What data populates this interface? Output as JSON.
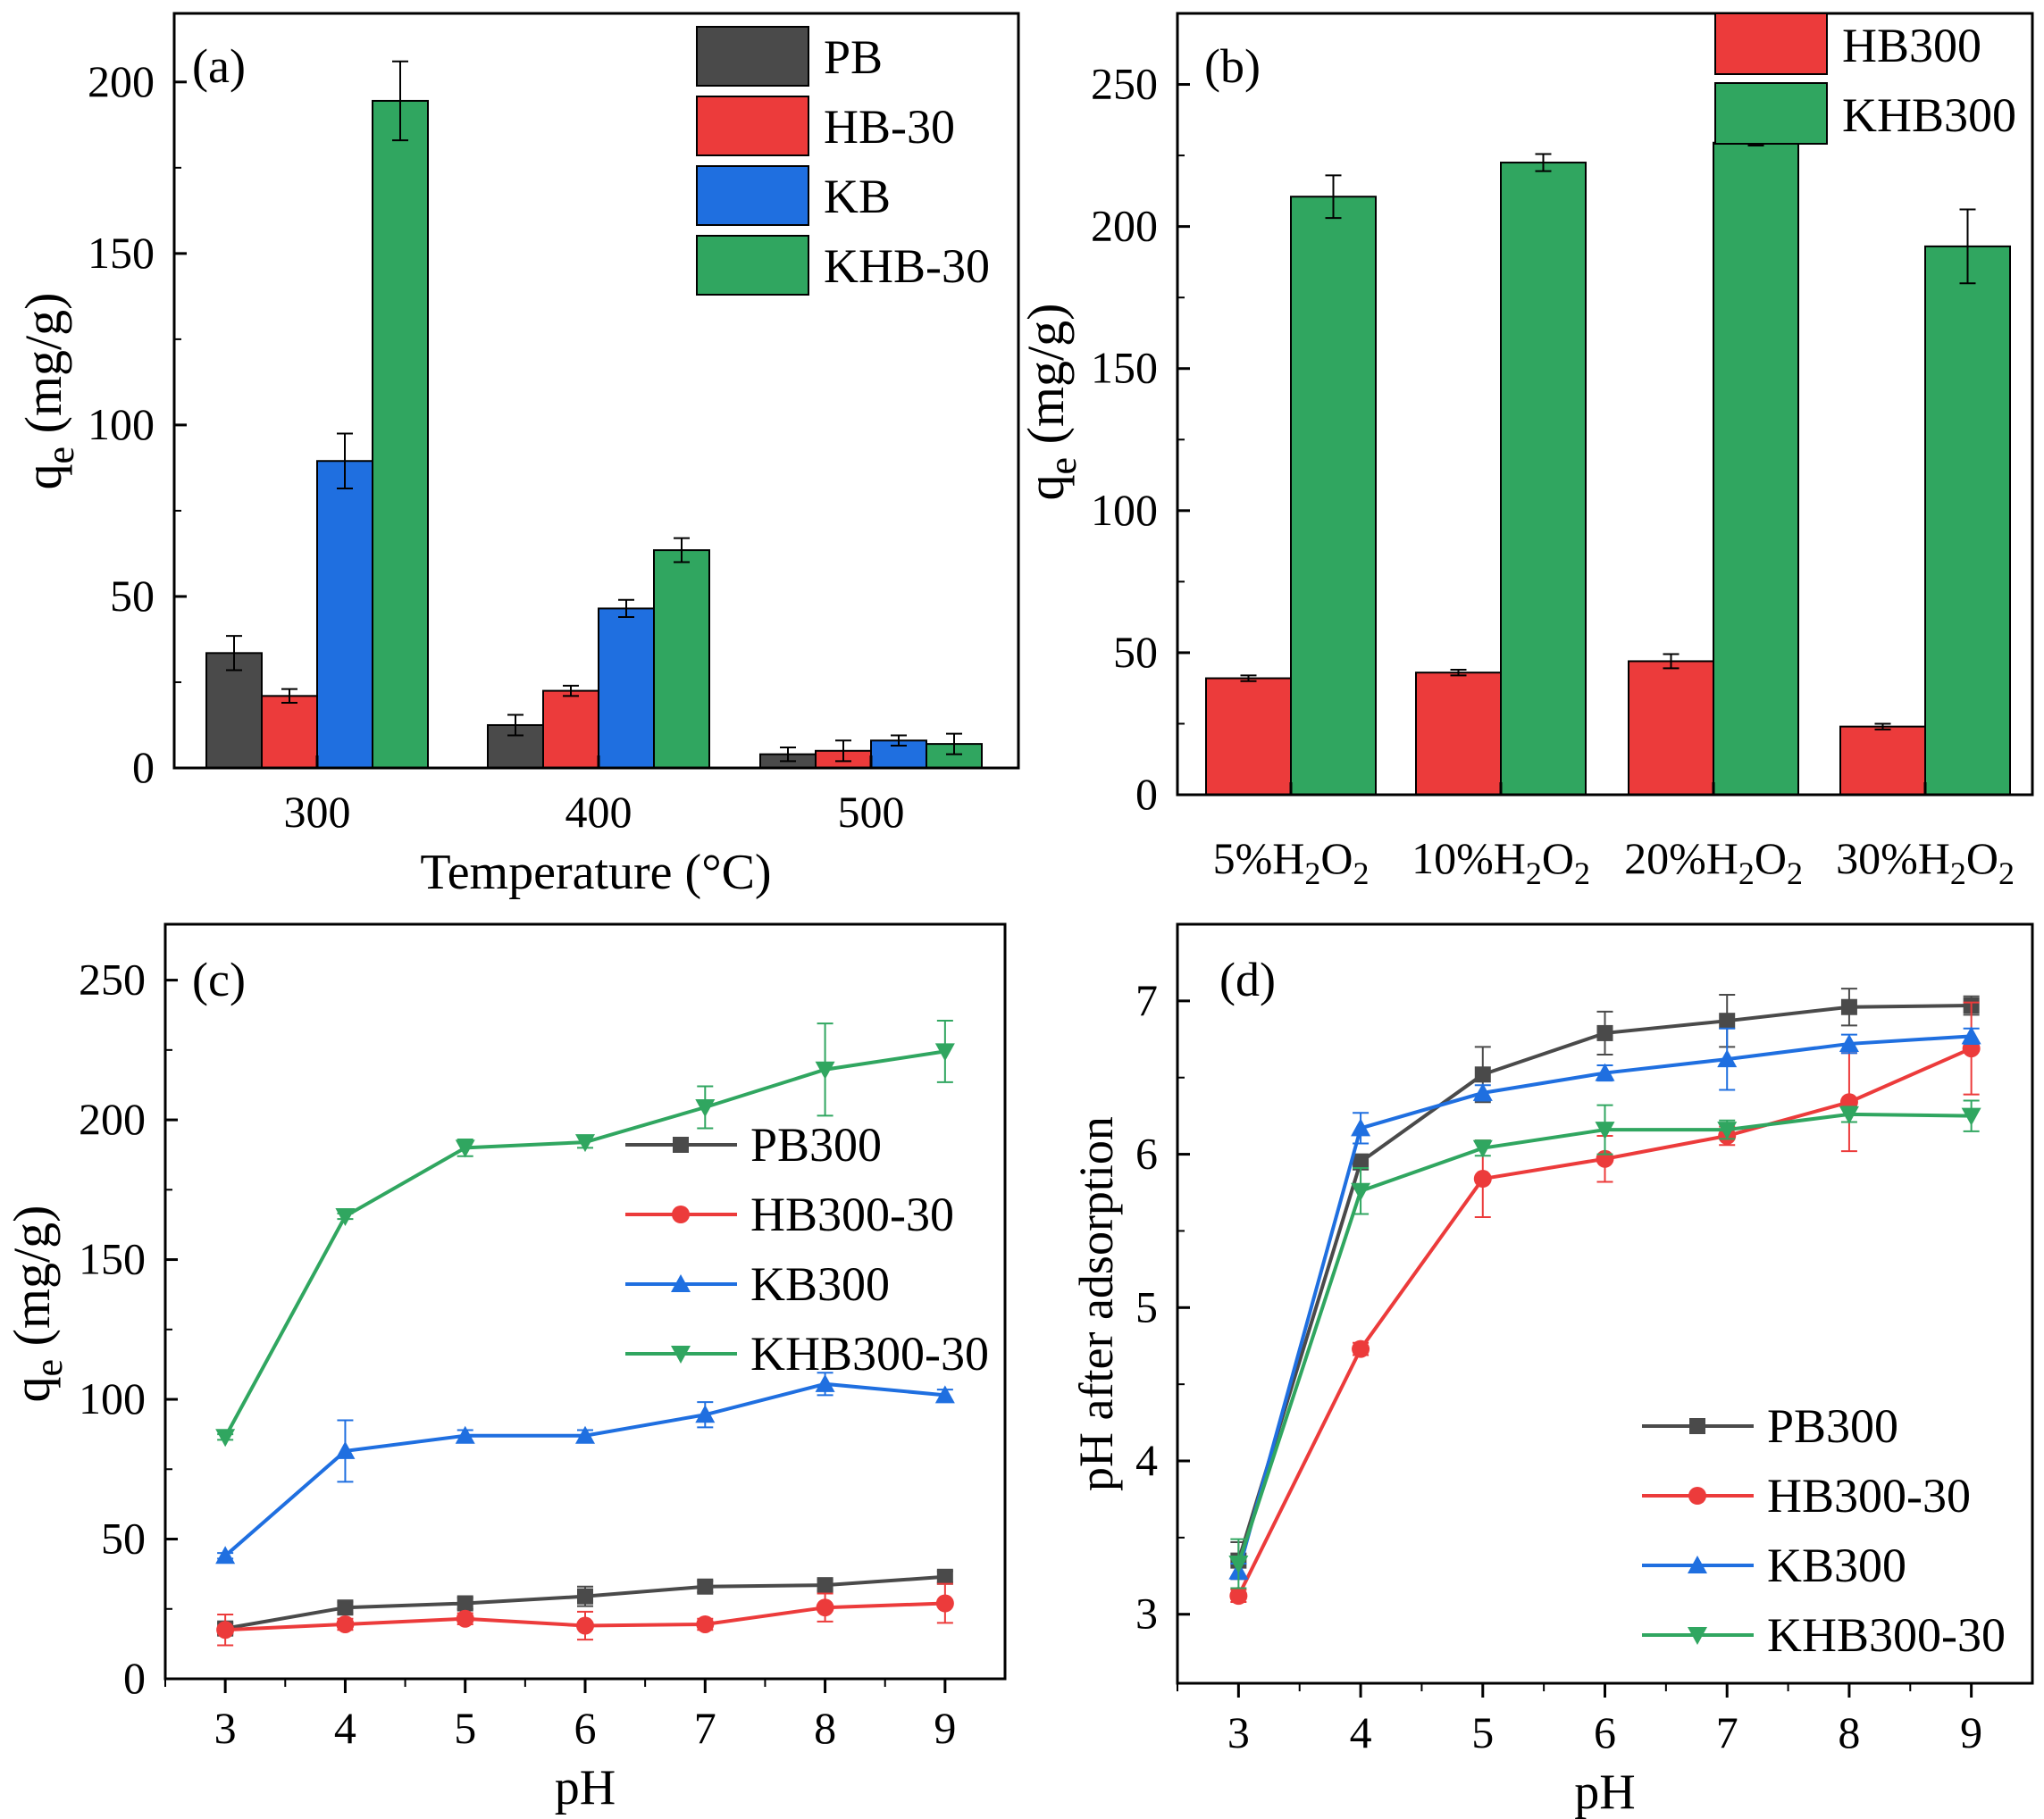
{
  "chart_data": [
    {
      "panel": "(a)",
      "type": "bar",
      "xlabel": "Temperature (°C)",
      "ylabel_main": "q",
      "ylabel_sub": "e",
      "ylabel_unit": " (mg/g)",
      "ylim": [
        0,
        220
      ],
      "yticks": [
        0,
        50,
        100,
        150,
        200
      ],
      "categories": [
        "300",
        "400",
        "500"
      ],
      "series": [
        {
          "name": "PB",
          "color": "#4a4a4a",
          "values": [
            33.5,
            12.5,
            4.0
          ],
          "errors": [
            5.0,
            3.0,
            2.0
          ]
        },
        {
          "name": "HB-30",
          "color": "#ec3b3b",
          "values": [
            21.0,
            22.5,
            5.0
          ],
          "errors": [
            2.0,
            1.5,
            3.0
          ]
        },
        {
          "name": "KB",
          "color": "#1f6fe0",
          "values": [
            89.5,
            46.5,
            8.0
          ],
          "errors": [
            8.0,
            2.5,
            1.5
          ]
        },
        {
          "name": "KHB-30",
          "color": "#30a660",
          "values": [
            194.5,
            63.5,
            7.0
          ],
          "errors": [
            11.5,
            3.5,
            3.0
          ]
        }
      ]
    },
    {
      "panel": "(b)",
      "type": "bar",
      "ylabel_main": "q",
      "ylabel_sub": "e",
      "ylabel_unit": " (mg/g)",
      "ylim": [
        0,
        275
      ],
      "yticks": [
        0,
        50,
        100,
        150,
        200,
        250
      ],
      "categories": [
        {
          "a": "5%H",
          "b": "2",
          "c": "O",
          "d": "2"
        },
        {
          "a": "10%H",
          "b": "2",
          "c": "O",
          "d": "2"
        },
        {
          "a": "20%H",
          "b": "2",
          "c": "O",
          "d": "2"
        },
        {
          "a": "30%H",
          "b": "2",
          "c": "O",
          "d": "2"
        }
      ],
      "series": [
        {
          "name": "HB300",
          "color": "#ec3b3b",
          "values": [
            41.0,
            43.0,
            47.0,
            24.0
          ],
          "errors": [
            1.0,
            1.0,
            2.5,
            1.0
          ]
        },
        {
          "name": "KHB300",
          "color": "#30a660",
          "values": [
            210.5,
            222.5,
            229.5,
            193.0
          ],
          "errors": [
            7.5,
            3.0,
            1.0,
            13.0
          ]
        }
      ]
    },
    {
      "panel": "(c)",
      "type": "line",
      "xlabel": "pH",
      "ylabel_main": "q",
      "ylabel_sub": "e",
      "ylabel_unit": " (mg/g)",
      "xlim": [
        2.5,
        9.5
      ],
      "ylim": [
        0,
        270
      ],
      "xticks": [
        3,
        4,
        5,
        6,
        7,
        8,
        9
      ],
      "yticks": [
        0,
        50,
        100,
        150,
        200,
        250
      ],
      "x": [
        3,
        4,
        5,
        6,
        7,
        8,
        9
      ],
      "series": [
        {
          "name": "PB300",
          "color": "#4a4a4a",
          "marker": "square",
          "values": [
            18,
            25.5,
            27,
            29.5,
            33,
            33.5,
            36.5
          ],
          "errors": [
            2,
            2,
            2,
            3.5,
            2,
            2,
            2
          ]
        },
        {
          "name": "HB300-30",
          "color": "#ec3b3b",
          "marker": "circle",
          "values": [
            17.5,
            19.5,
            21.5,
            19,
            19.5,
            25.5,
            27
          ],
          "errors": [
            5.5,
            2,
            2,
            5,
            2,
            5,
            7
          ]
        },
        {
          "name": "KB300",
          "color": "#1f6fe0",
          "marker": "triangle-up",
          "values": [
            44,
            81.5,
            87,
            87,
            94.5,
            105.5,
            101.5
          ],
          "errors": [
            1,
            11,
            2,
            2,
            4.5,
            4,
            2
          ]
        },
        {
          "name": "KHB300-30",
          "color": "#30a660",
          "marker": "triangle-down",
          "values": [
            86.5,
            165.5,
            190,
            192,
            204.5,
            218,
            224.5
          ],
          "errors": [
            1,
            1,
            3,
            2,
            7.5,
            16.5,
            11
          ]
        }
      ]
    },
    {
      "panel": "(d)",
      "type": "line",
      "xlabel": "pH",
      "ylabel": "pH after adsorption",
      "xlim": [
        2.5,
        9.5
      ],
      "ylim": [
        2.55,
        7.5
      ],
      "xticks": [
        3,
        4,
        5,
        6,
        7,
        8,
        9
      ],
      "yticks": [
        3,
        4,
        5,
        6,
        7
      ],
      "x": [
        3,
        4,
        5,
        6,
        7,
        8,
        9
      ],
      "series": [
        {
          "name": "PB300",
          "color": "#4a4a4a",
          "marker": "square",
          "values": [
            3.35,
            5.95,
            6.52,
            6.79,
            6.87,
            6.96,
            6.97
          ],
          "errors": [
            0.12,
            0.05,
            0.18,
            0.14,
            0.17,
            0.12,
            0.06
          ]
        },
        {
          "name": "HB300-30",
          "color": "#ec3b3b",
          "marker": "circle",
          "values": [
            3.12,
            4.73,
            5.84,
            5.97,
            6.12,
            6.34,
            6.69
          ],
          "errors": [
            0.04,
            0.04,
            0.25,
            0.15,
            0.06,
            0.32,
            0.3
          ]
        },
        {
          "name": "KB300",
          "color": "#1f6fe0",
          "marker": "triangle-up",
          "values": [
            3.28,
            6.17,
            6.4,
            6.53,
            6.62,
            6.72,
            6.77
          ],
          "errors": [
            0.05,
            0.1,
            0.05,
            0.05,
            0.2,
            0.06,
            0.05
          ]
        },
        {
          "name": "KHB300-30",
          "color": "#30a660",
          "marker": "triangle-down",
          "values": [
            3.33,
            5.76,
            6.04,
            6.16,
            6.16,
            6.26,
            6.25
          ],
          "errors": [
            0.16,
            0.15,
            0.05,
            0.16,
            0.06,
            0.05,
            0.1
          ]
        }
      ]
    }
  ]
}
